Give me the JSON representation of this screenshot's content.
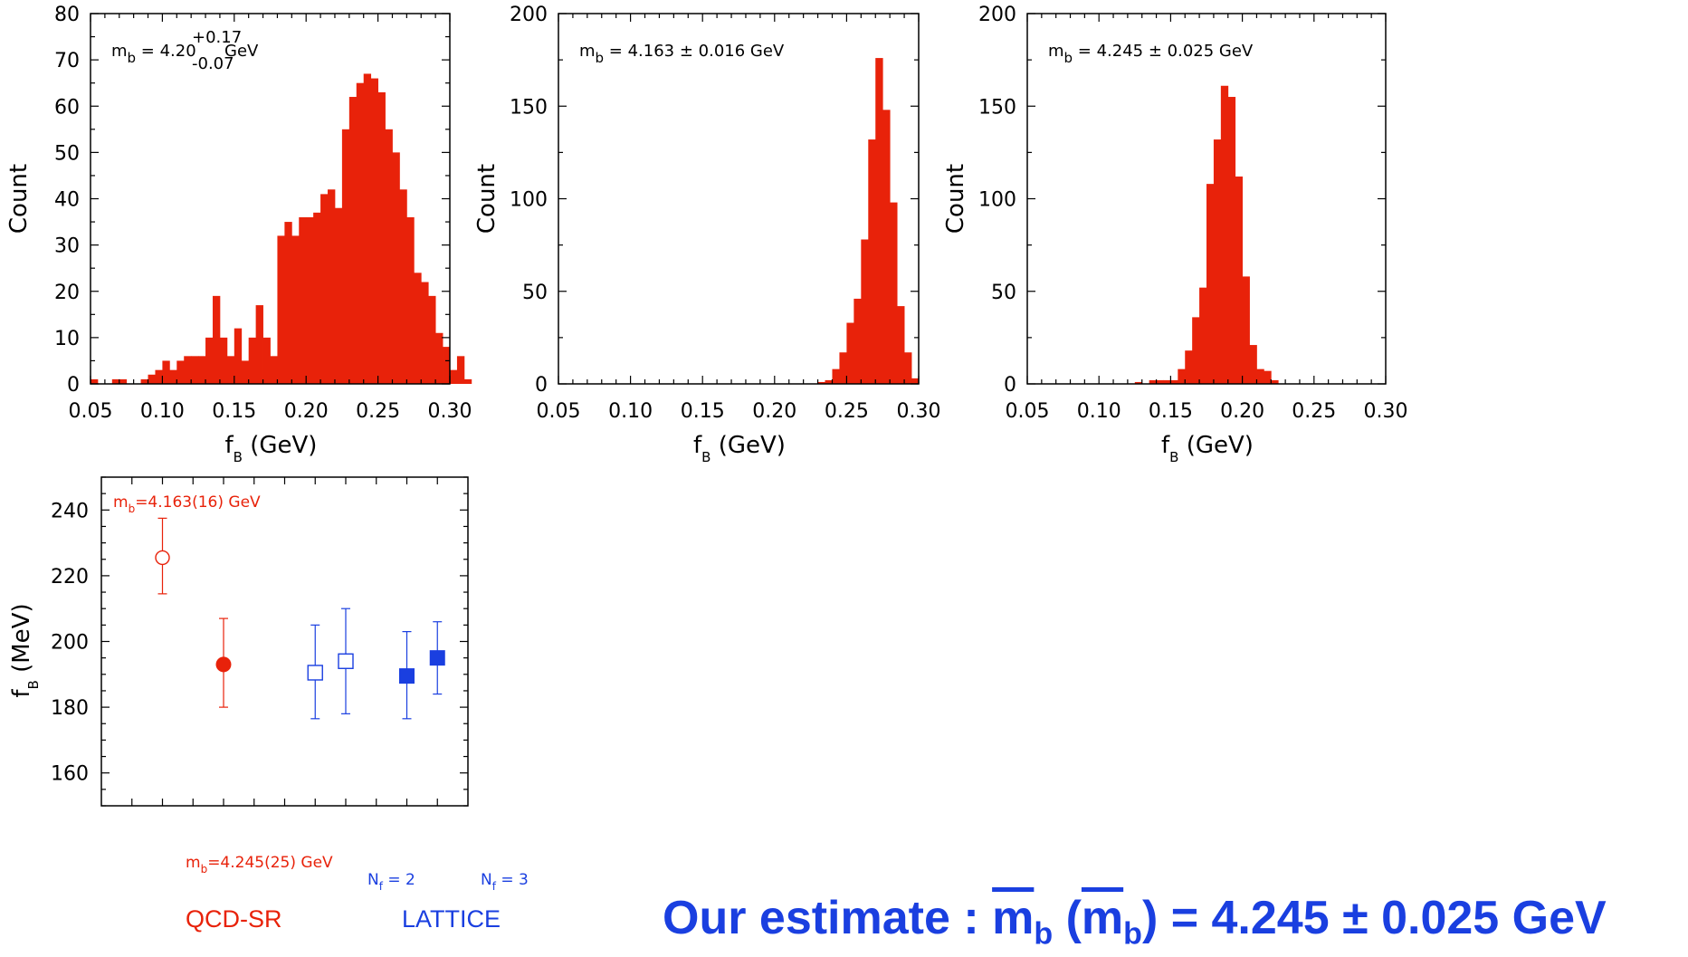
{
  "chart_data": [
    {
      "type": "bar",
      "panel": "histogram-1",
      "xlabel": "f",
      "xlabel_sub": "B",
      "xlabel_unit": " (GeV)",
      "ylabel": "Count",
      "xlim": [
        0.05,
        0.3
      ],
      "ylim": [
        0,
        80
      ],
      "xticks": [
        "0.05",
        "0.10",
        "0.15",
        "0.20",
        "0.25",
        "0.30"
      ],
      "yticks": [
        "0",
        "10",
        "20",
        "30",
        "40",
        "50",
        "60",
        "70",
        "80"
      ],
      "annotation": {
        "m": "m",
        "sub": "b",
        "mid": " = 4.20",
        "sup": "+0.17",
        "low": "-0.07",
        "unit": " GeV"
      },
      "bin_start": 0.05,
      "bin_width": 0.005,
      "values": [
        1,
        0,
        0,
        1,
        1,
        0,
        0,
        1,
        2,
        3,
        5,
        3,
        5,
        6,
        6,
        6,
        10,
        19,
        10,
        6,
        12,
        5,
        10,
        17,
        10,
        6,
        32,
        35,
        32,
        36,
        36,
        37,
        41,
        42,
        38,
        55,
        62,
        65,
        67,
        66,
        63,
        55,
        50,
        42,
        36,
        24,
        22,
        19,
        11,
        8,
        3,
        6,
        1,
        0,
        0,
        0,
        0,
        0,
        0,
        0
      ]
    },
    {
      "type": "bar",
      "panel": "histogram-2",
      "xlabel": "f",
      "xlabel_sub": "B",
      "xlabel_unit": " (GeV)",
      "ylabel": "Count",
      "xlim": [
        0.05,
        0.3
      ],
      "ylim": [
        0,
        200
      ],
      "xticks": [
        "0.05",
        "0.10",
        "0.15",
        "0.20",
        "0.25",
        "0.30"
      ],
      "yticks": [
        "0",
        "50",
        "100",
        "150",
        "200"
      ],
      "annotation": {
        "m": "m",
        "sub": "b",
        "text": " = 4.163 ± 0.016 GeV"
      },
      "bin_start": 0.05,
      "bin_width": 0.005,
      "values": [
        0,
        0,
        0,
        0,
        0,
        0,
        0,
        0,
        0,
        0,
        0,
        0,
        0,
        0,
        0,
        0,
        0,
        0,
        0,
        0,
        0,
        0,
        0,
        0,
        0,
        0,
        0,
        0,
        0,
        0,
        0,
        0,
        0,
        0,
        0,
        0,
        1,
        2,
        8,
        17,
        33,
        46,
        78,
        132,
        176,
        148,
        98,
        42,
        17,
        3,
        0,
        0,
        0,
        0,
        0,
        0,
        0,
        0,
        0,
        0
      ]
    },
    {
      "type": "bar",
      "panel": "histogram-3",
      "xlabel": "f",
      "xlabel_sub": "B",
      "xlabel_unit": " (GeV)",
      "ylabel": "Count",
      "xlim": [
        0.05,
        0.3
      ],
      "ylim": [
        0,
        200
      ],
      "xticks": [
        "0.05",
        "0.10",
        "0.15",
        "0.20",
        "0.25",
        "0.30"
      ],
      "yticks": [
        "0",
        "50",
        "100",
        "150",
        "200"
      ],
      "annotation": {
        "m": "m",
        "sub": "b",
        "text": " = 4.245 ± 0.025 GeV"
      },
      "bin_start": 0.05,
      "bin_width": 0.005,
      "values": [
        0,
        0,
        0,
        0,
        0,
        0,
        0,
        0,
        0,
        0,
        0,
        0,
        0,
        0,
        0,
        1,
        0,
        2,
        2,
        2,
        2,
        8,
        18,
        36,
        52,
        108,
        132,
        161,
        155,
        112,
        58,
        21,
        8,
        7,
        2,
        0,
        0,
        0,
        0,
        0,
        0,
        0,
        0,
        0,
        0,
        0,
        0,
        0,
        0,
        0,
        0,
        0,
        0,
        0,
        0,
        0,
        0,
        0,
        0,
        0
      ]
    },
    {
      "type": "scatter",
      "panel": "comparison",
      "ylabel": "f",
      "ylabel_sub": "B",
      "ylabel_unit": " (MeV)",
      "ylim": [
        150,
        250
      ],
      "yticks": [
        "160",
        "180",
        "200",
        "220",
        "240"
      ],
      "xlim": [
        0,
        12
      ],
      "points": [
        {
          "x": 2,
          "y": 225.5,
          "err_low": 11,
          "err_high": 12,
          "marker": "circle-open",
          "color": "#e8220a"
        },
        {
          "x": 4,
          "y": 193,
          "err_low": 13,
          "err_high": 14,
          "marker": "circle-filled",
          "color": "#e8220a"
        },
        {
          "x": 7,
          "y": 190.5,
          "err_low": 14,
          "err_high": 14.5,
          "marker": "square-open",
          "color": "#1a3fe0"
        },
        {
          "x": 8,
          "y": 194,
          "err_low": 16,
          "err_high": 16,
          "marker": "square-open",
          "color": "#1a3fe0"
        },
        {
          "x": 10,
          "y": 189.5,
          "err_low": 13,
          "err_high": 13.5,
          "marker": "square-filled",
          "color": "#1a3fe0"
        },
        {
          "x": 11,
          "y": 195,
          "err_low": 11,
          "err_high": 11,
          "marker": "square-filled",
          "color": "#1a3fe0"
        }
      ],
      "annotations": {
        "top_red": {
          "m": "m",
          "sub": "b",
          "text": "=4.163(16) GeV"
        },
        "bottom_red": {
          "m": "m",
          "sub": "b",
          "text": "=4.245(25) GeV"
        },
        "nf2": {
          "n": "N",
          "sub": "f",
          "text": " = 2"
        },
        "nf3": {
          "n": "N",
          "sub": "f",
          "text": " = 3"
        },
        "group_qcd": "QCD-SR",
        "group_lattice": "LATTICE"
      }
    }
  ],
  "colors": {
    "bars": "#e8220a",
    "red": "#e8220a",
    "blue": "#1a3fe0"
  },
  "estimate": {
    "prefix": "Our estimate : ",
    "m1": "m",
    "sub1": "b",
    "open": " (",
    "m2": "m",
    "sub2": "b",
    "close": ") = 4.245 ± 0.025 GeV"
  }
}
